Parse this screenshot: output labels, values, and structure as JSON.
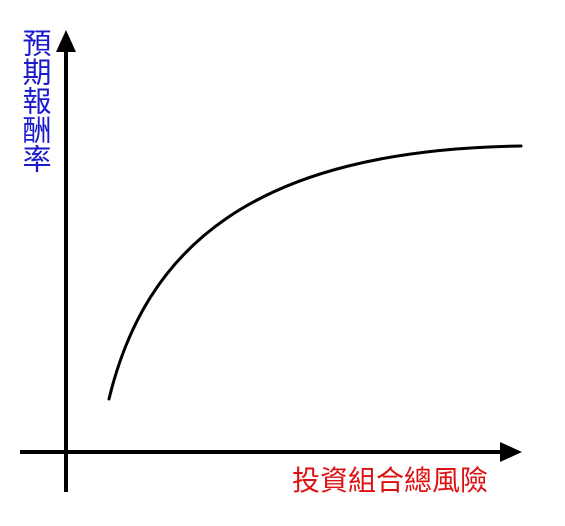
{
  "diagram": {
    "y_axis_label": "預期報酬率",
    "x_axis_label": "投資組合總風險",
    "colors": {
      "y_label": "#1a1acc",
      "x_label": "#dd1111",
      "lines": "#000000"
    }
  }
}
